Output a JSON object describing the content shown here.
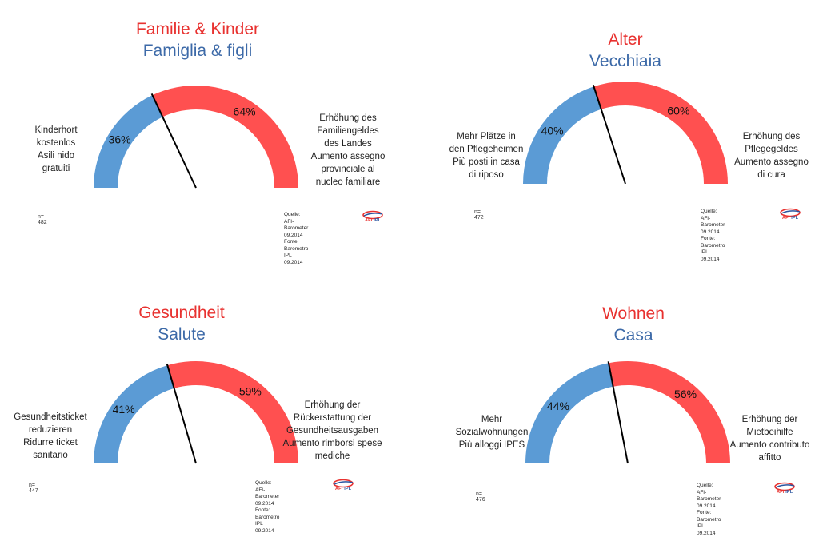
{
  "colors": {
    "left": "#5b9bd5",
    "right": "#ff5050",
    "title_de": "#e8312f",
    "title_it": "#3d6aa8"
  },
  "source": {
    "de": "Quelle: AFI-Barometer 09.2014",
    "it": "Fonte: Barometro IPL 09.2014"
  },
  "logo": {
    "afi": "AFI",
    "ipl": "IPL"
  },
  "panels": [
    {
      "title_de": "Familie & Kinder",
      "title_it": "Famiglia & figli",
      "n": "n= 482",
      "left_label": "Kinderhort\nkostenlos\nAsili nido\ngratuiti",
      "right_label": "Erhöhung des\nFamiliengeldes\ndes Landes\nAumento assegno\nprovinciale  al\nnucleo familiare",
      "left_pct": "36%",
      "right_pct": "64%"
    },
    {
      "title_de": "Alter",
      "title_it": "Vecchiaia",
      "n": "n= 472",
      "left_label": "Mehr Plätze in\nden Pflegeheimen\nPiù posti in casa\ndi riposo",
      "right_label": "Erhöhung des\nPflegegeldes\nAumento assegno\ndi cura",
      "left_pct": "40%",
      "right_pct": "60%"
    },
    {
      "title_de": "Gesundheit",
      "title_it": "Salute",
      "n": "n= 447",
      "left_label": "Gesundheitsticket\nreduzieren\nRidurre ticket\nsanitario",
      "right_label": "Erhöhung der\nRückerstattung der\nGesundheitsausgaben\nAumento rimborsi spese\nmediche",
      "left_pct": "41%",
      "right_pct": "59%"
    },
    {
      "title_de": "Wohnen",
      "title_it": "Casa",
      "n": "n= 476",
      "left_label": "Mehr\nSozialwohnungen\nPiù alloggi IPES",
      "right_label": "Erhöhung der\nMietbeihilfe\nAumento contributo\naffitto",
      "left_pct": "44%",
      "right_pct": "56%"
    }
  ],
  "chart_data": [
    {
      "type": "gauge",
      "title": "Familie & Kinder / Famiglia & figli",
      "categories": [
        "Kinderhort kostenlos / Asili nido gratuiti",
        "Erhöhung des Familiengeldes des Landes / Aumento assegno provinciale al nucleo familiare"
      ],
      "values": [
        36,
        64
      ]
    },
    {
      "type": "gauge",
      "title": "Alter / Vecchiaia",
      "categories": [
        "Mehr Plätze in den Pflegeheimen / Più posti in casa di riposo",
        "Erhöhung des Pflegegeldes / Aumento assegno di cura"
      ],
      "values": [
        40,
        60
      ]
    },
    {
      "type": "gauge",
      "title": "Gesundheit / Salute",
      "categories": [
        "Gesundheitsticket reduzieren / Ridurre ticket sanitario",
        "Erhöhung der Rückerstattung der Gesundheitsausgaben / Aumento rimborsi spese mediche"
      ],
      "values": [
        41,
        59
      ]
    },
    {
      "type": "gauge",
      "title": "Wohnen / Casa",
      "categories": [
        "Mehr Sozialwohnungen / Più alloggi IPES",
        "Erhöhung der Mietbeihilfe / Aumento contributo affitto"
      ],
      "values": [
        44,
        56
      ]
    }
  ]
}
